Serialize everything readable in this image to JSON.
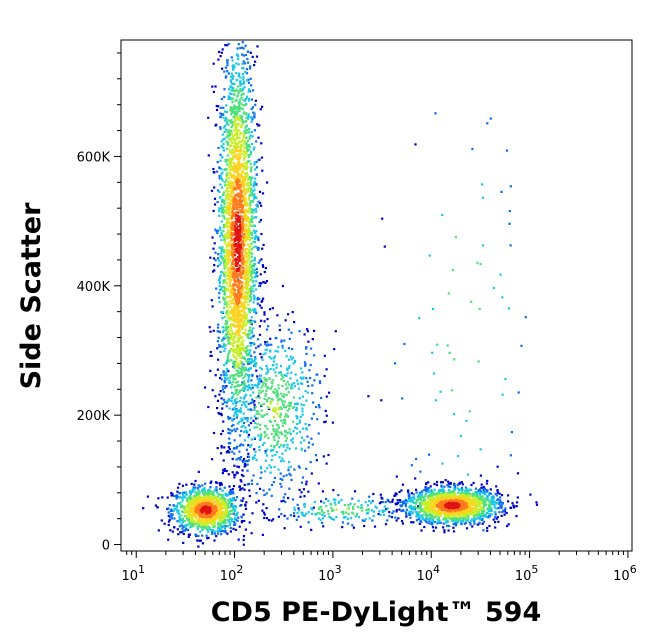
{
  "chart_data": {
    "type": "scatter",
    "style": "density-dot-plot",
    "xlabel": "CD5 PE-DyLight™ 594",
    "ylabel": "Side Scatter",
    "x_scale": "log",
    "x_range": [
      7,
      1100000
    ],
    "y_range": [
      -10000,
      780000
    ],
    "x_ticks": [
      {
        "value": 10,
        "base": "10",
        "exp": "1"
      },
      {
        "value": 100,
        "base": "10",
        "exp": "2"
      },
      {
        "value": 1000,
        "base": "10",
        "exp": "3"
      },
      {
        "value": 10000,
        "base": "10",
        "exp": "4"
      },
      {
        "value": 100000,
        "base": "10",
        "exp": "5"
      },
      {
        "value": 1000000,
        "base": "10",
        "exp": "6"
      }
    ],
    "y_ticks": [
      {
        "value": 0,
        "label": "0"
      },
      {
        "value": 200000,
        "label": "200K"
      },
      {
        "value": 400000,
        "label": "400K"
      },
      {
        "value": 600000,
        "label": "600K"
      }
    ],
    "populations": [
      {
        "x_center": 50,
        "y_center": 55000,
        "log_x_sd": 0.17,
        "y_sd": 18000,
        "count": 1100
      },
      {
        "x_center": 105,
        "y_center": 470000,
        "log_x_sd": 0.1,
        "y_sd": 150000,
        "count": 2800
      },
      {
        "x_center": 250,
        "y_center": 210000,
        "log_x_sd": 0.25,
        "y_sd": 70000,
        "count": 650
      },
      {
        "x_center": 16000,
        "y_center": 62000,
        "log_x_sd": 0.24,
        "y_sd": 14000,
        "count": 1600
      },
      {
        "x_center": 1200,
        "y_center": 55000,
        "log_x_sd": 0.35,
        "y_sd": 12000,
        "count": 180
      },
      {
        "x_center": 20000,
        "y_center": 350000,
        "log_x_sd": 0.35,
        "y_sd": 180000,
        "count": 70
      }
    ],
    "density_colors": [
      "#0000cc",
      "#0a6cf2",
      "#19c8e6",
      "#4ee07a",
      "#c8ee2a",
      "#ffd21e",
      "#ff7a1e",
      "#e01212"
    ],
    "grid": false,
    "legend": "none"
  }
}
